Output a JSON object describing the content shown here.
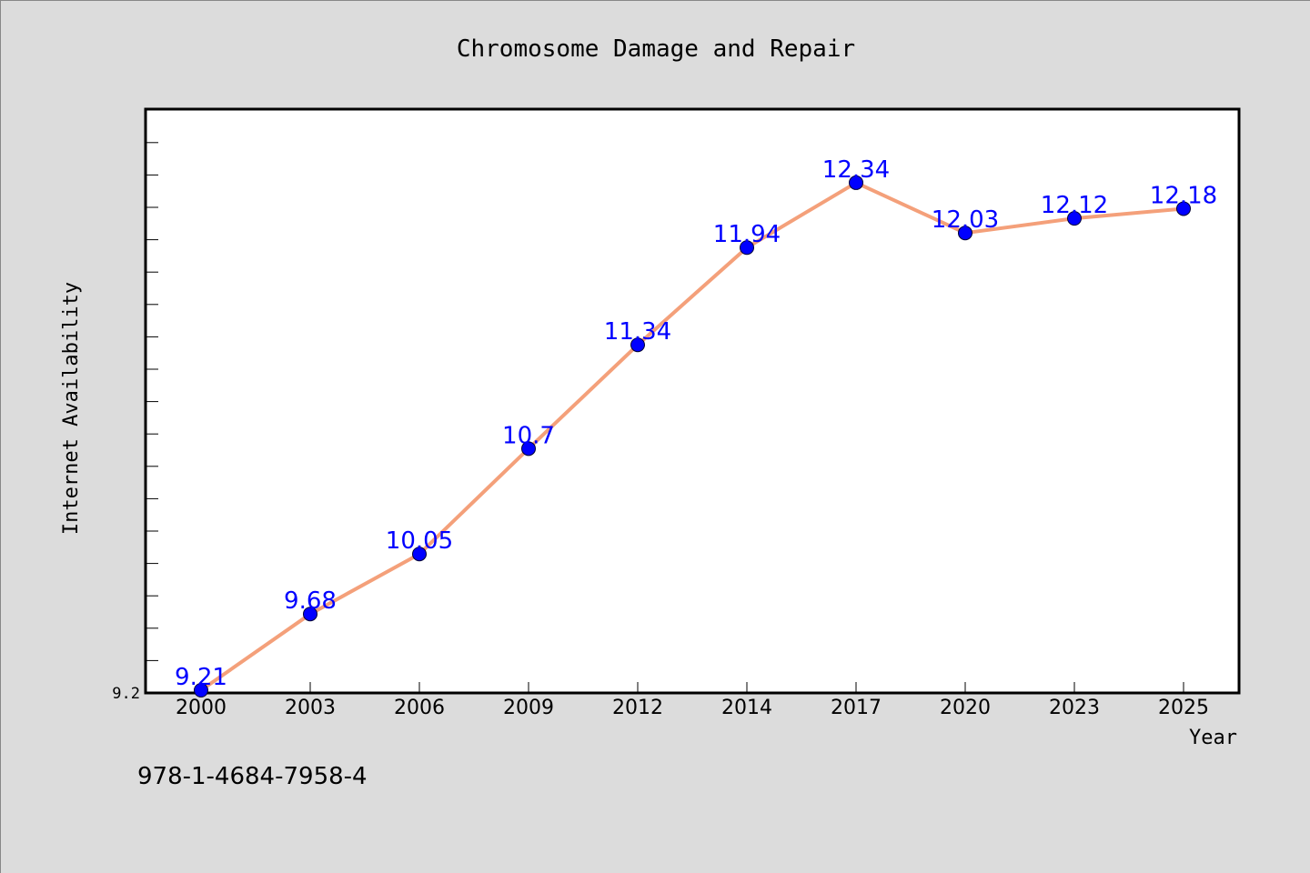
{
  "chart_data": {
    "type": "line",
    "title": "Chromosome Damage and Repair",
    "xlabel": "Year",
    "ylabel": "Internet Availability",
    "categories": [
      "2000",
      "2003",
      "2006",
      "2009",
      "2012",
      "2014",
      "2017",
      "2020",
      "2023",
      "2025"
    ],
    "series": [
      {
        "values": [
          9.21,
          9.68,
          10.05,
          10.7,
          11.34,
          11.94,
          12.34,
          12.03,
          12.12,
          12.18
        ],
        "data_labels": [
          "9.21",
          "9.68",
          "10.05",
          "10.7",
          "11.34",
          "11.94",
          "12.34",
          "12.03",
          "12.12",
          "12.18"
        ]
      }
    ],
    "y_tick_labels": [
      "9.2"
    ],
    "ylim": [
      9.2,
      12.8
    ],
    "grid": false,
    "legend": "none"
  },
  "footer": {
    "isbn": "978-1-4684-7958-4"
  },
  "colors": {
    "background": "#dcdcdc",
    "plot_background": "#ffffff",
    "line": "#f4a07a",
    "marker": "#0000ff",
    "data_label": "#0000ff",
    "text": "#000000"
  }
}
